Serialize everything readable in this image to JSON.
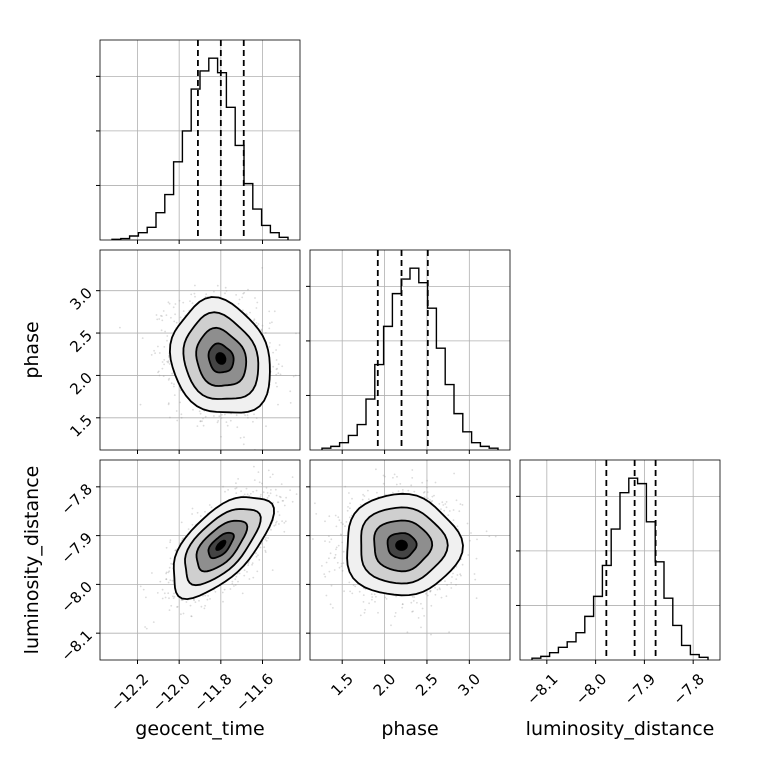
{
  "chart_data": {
    "type": "corner",
    "parameters": [
      {
        "key": "geocent_time",
        "label": "geocent_time",
        "range": [
          -12.38,
          -11.42
        ],
        "ticks": [
          -12.2,
          -12.0,
          -11.8,
          -11.6
        ],
        "tick_labels": [
          "−12.2",
          "−12.0",
          "−11.8",
          "−11.6"
        ],
        "median": -11.8,
        "quantiles": [
          -11.91,
          -11.8,
          -11.69
        ],
        "hist_counts": [
          0.4,
          0.8,
          2.2,
          4,
          7,
          15,
          25,
          43,
          60,
          83,
          93,
          100,
          92,
          73,
          52,
          31,
          17,
          8,
          4,
          1.5
        ]
      },
      {
        "key": "phase",
        "label": "phase",
        "range": [
          1.12,
          3.48
        ],
        "ticks": [
          1.5,
          2.0,
          2.5,
          3.0
        ],
        "tick_labels": [
          "1.5",
          "2.0",
          "2.5",
          "3.0"
        ],
        "median": 2.2,
        "quantiles": [
          1.92,
          2.2,
          2.51
        ],
        "hist_counts": [
          1,
          2,
          4,
          8,
          14,
          28,
          47,
          68,
          86,
          94,
          100,
          92,
          78,
          56,
          36,
          20,
          10,
          4,
          2,
          1
        ]
      },
      {
        "key": "luminosity_distance",
        "label": "luminosity_distance",
        "range": [
          -8.155,
          -7.745
        ],
        "ticks": [
          -8.1,
          -8.0,
          -7.9,
          -7.8
        ],
        "tick_labels": [
          "−8.1",
          "−8.0",
          "−7.9",
          "−7.8"
        ],
        "median": -7.92,
        "quantiles": [
          -7.978,
          -7.92,
          -7.877
        ],
        "hist_counts": [
          1,
          2,
          4,
          7,
          10,
          15,
          24,
          35,
          52,
          72,
          92,
          100,
          97,
          76,
          54,
          34,
          19,
          8,
          3,
          1.5
        ]
      }
    ],
    "pairs": [
      {
        "x": "geocent_time",
        "y": "phase",
        "center": [
          -11.8,
          2.2
        ],
        "sd": [
          0.12,
          0.34
        ],
        "rho": -0.15,
        "contour_levels_sigma": [
          0.5,
          1.0,
          1.5,
          2.0
        ]
      },
      {
        "x": "geocent_time",
        "y": "luminosity_distance",
        "center": [
          -11.8,
          -7.92
        ],
        "sd": [
          0.12,
          0.052
        ],
        "rho": 0.62,
        "contour_levels_sigma": [
          0.5,
          1.0,
          1.5,
          2.0
        ]
      },
      {
        "x": "phase",
        "y": "luminosity_distance",
        "center": [
          2.2,
          -7.92
        ],
        "sd": [
          0.34,
          0.052
        ],
        "rho": 0.0,
        "contour_levels_sigma": [
          0.5,
          1.0,
          1.5,
          2.0
        ]
      }
    ],
    "grid": true
  }
}
